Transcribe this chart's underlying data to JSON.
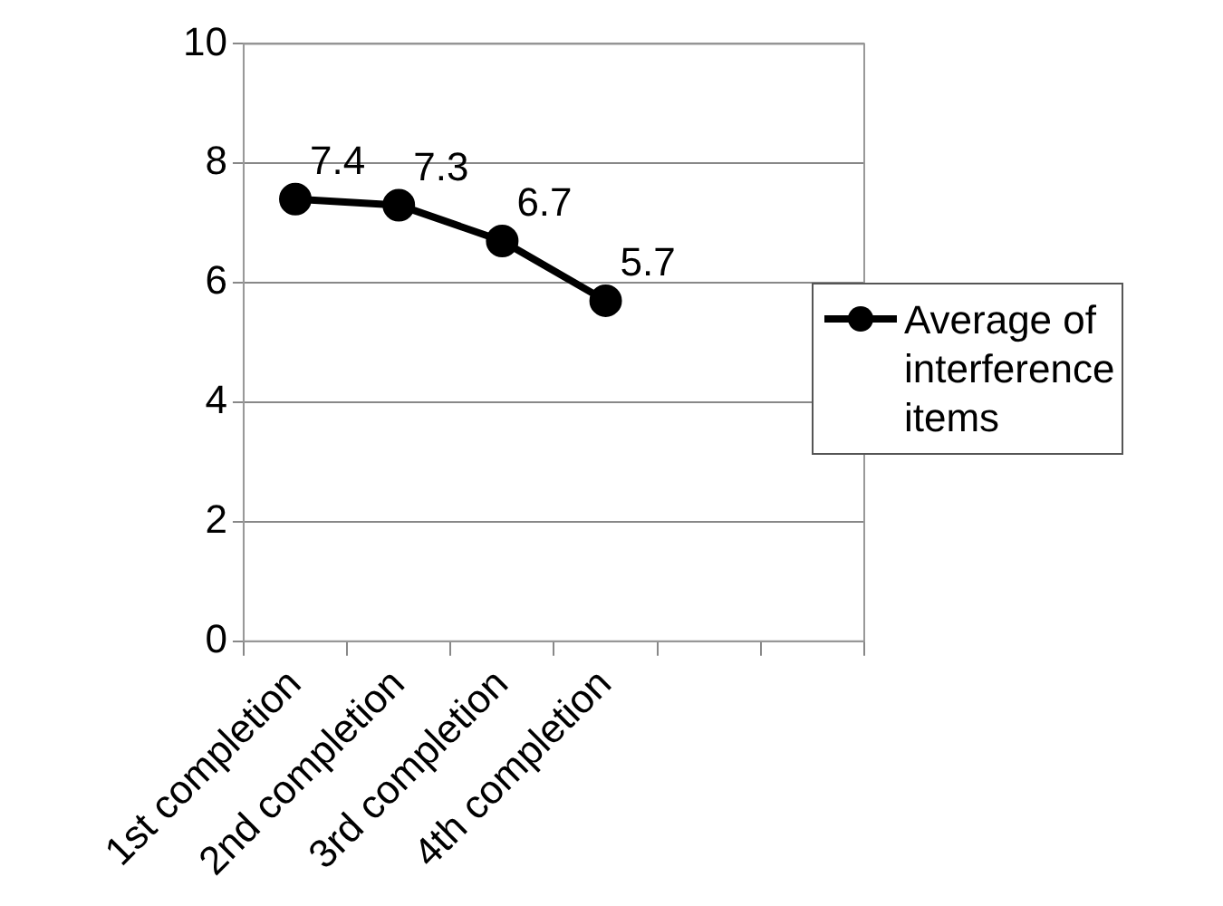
{
  "chart_data": {
    "type": "line",
    "categories": [
      "1st completion",
      "2nd completion",
      "3rd completion",
      "4th completion",
      null,
      null
    ],
    "series": [
      {
        "name": "Average of interference items",
        "color": "#000000",
        "values": [
          7.4,
          7.3,
          6.7,
          5.7,
          null,
          null
        ]
      }
    ],
    "ylim": [
      0,
      10
    ],
    "yticks": [
      0,
      2,
      4,
      6,
      8,
      10
    ],
    "grid": "y",
    "legend": "right",
    "marker": "circle",
    "line_style": "solid",
    "data_labels": true
  }
}
